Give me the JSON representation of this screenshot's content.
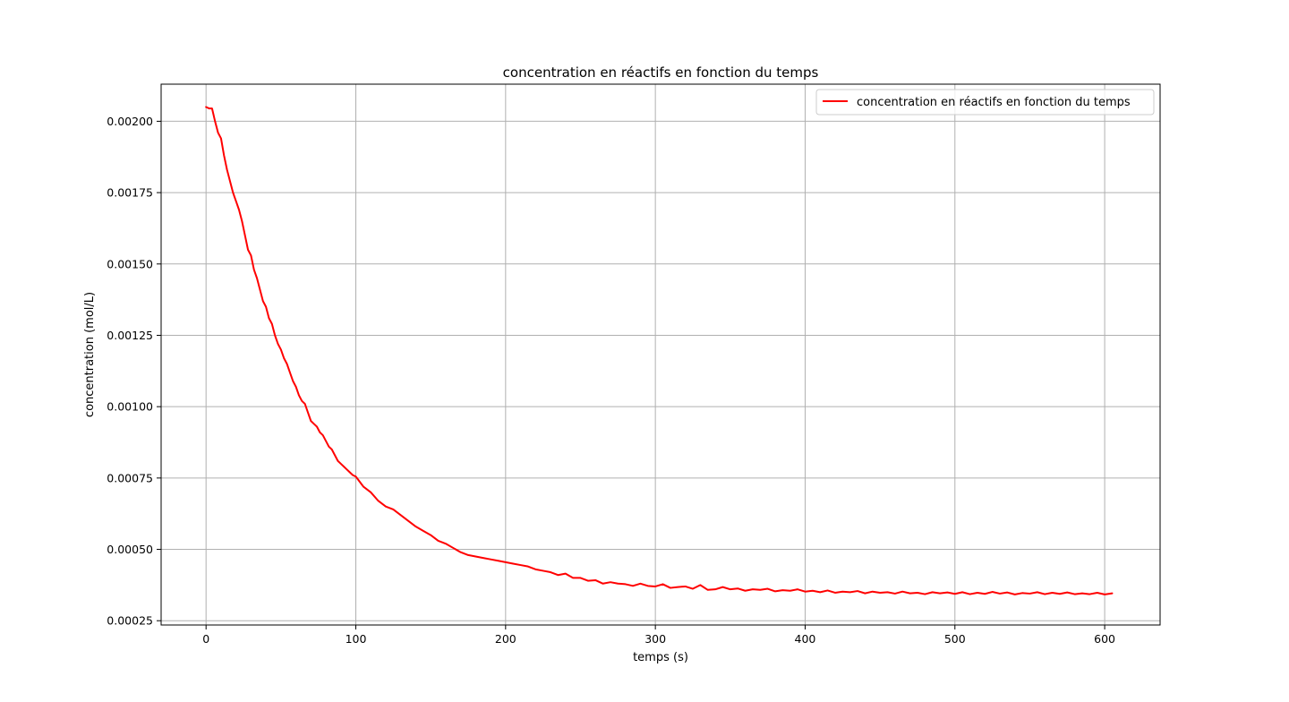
{
  "chart_data": {
    "type": "line",
    "title": "concentration en réactifs en fonction du temps",
    "xlabel": "temps (s)",
    "ylabel": "concentration (mol/L)",
    "xlim": [
      -30,
      637
    ],
    "ylim": [
      0.000235,
      0.00213
    ],
    "grid": true,
    "legend_placement": "upper-right",
    "x_ticks": [
      0,
      100,
      200,
      300,
      400,
      500,
      600
    ],
    "x_tick_labels": [
      "0",
      "100",
      "200",
      "300",
      "400",
      "500",
      "600"
    ],
    "y_ticks": [
      0.00025,
      0.0005,
      0.00075,
      0.001,
      0.00125,
      0.0015,
      0.00175,
      0.002
    ],
    "y_tick_labels": [
      "0.00025",
      "0.00050",
      "0.00075",
      "0.00100",
      "0.00125",
      "0.00150",
      "0.00175",
      "0.00200"
    ],
    "series": [
      {
        "name": "concentration en réactifs en fonction du temps",
        "color": "#ff0000",
        "x": [
          0,
          2,
          4,
          6,
          8,
          10,
          12,
          14,
          16,
          18,
          20,
          22,
          24,
          26,
          28,
          30,
          32,
          34,
          36,
          38,
          40,
          42,
          44,
          46,
          48,
          50,
          52,
          54,
          56,
          58,
          60,
          62,
          64,
          66,
          68,
          70,
          72,
          74,
          76,
          78,
          80,
          82,
          84,
          86,
          88,
          90,
          92,
          94,
          96,
          98,
          100,
          105,
          110,
          115,
          120,
          125,
          130,
          135,
          140,
          145,
          150,
          155,
          160,
          165,
          170,
          175,
          180,
          185,
          190,
          195,
          200,
          205,
          210,
          215,
          220,
          225,
          230,
          235,
          240,
          245,
          250,
          255,
          260,
          265,
          270,
          275,
          280,
          285,
          290,
          295,
          300,
          305,
          310,
          315,
          320,
          325,
          330,
          335,
          340,
          345,
          350,
          355,
          360,
          365,
          370,
          375,
          380,
          385,
          390,
          395,
          400,
          405,
          410,
          415,
          420,
          425,
          430,
          435,
          440,
          445,
          450,
          455,
          460,
          465,
          470,
          475,
          480,
          485,
          490,
          495,
          500,
          505,
          510,
          515,
          520,
          525,
          530,
          535,
          540,
          545,
          550,
          555,
          560,
          565,
          570,
          575,
          580,
          585,
          590,
          595,
          600,
          605
        ],
        "values": [
          0.00205,
          0.002045,
          0.002045,
          0.002,
          0.00196,
          0.00194,
          0.00188,
          0.00183,
          0.00179,
          0.00175,
          0.00172,
          0.00169,
          0.00165,
          0.0016,
          0.00155,
          0.00153,
          0.00148,
          0.00145,
          0.00141,
          0.00137,
          0.00135,
          0.00131,
          0.00129,
          0.00125,
          0.00122,
          0.0012,
          0.00117,
          0.00115,
          0.00112,
          0.00109,
          0.00107,
          0.00104,
          0.00102,
          0.00101,
          0.00098,
          0.00095,
          0.00094,
          0.00093,
          0.00091,
          0.0009,
          0.00088,
          0.00086,
          0.00085,
          0.00083,
          0.00081,
          0.0008,
          0.00079,
          0.00078,
          0.00077,
          0.00076,
          0.000755,
          0.00072,
          0.0007,
          0.00067,
          0.00065,
          0.00064,
          0.00062,
          0.0006,
          0.00058,
          0.000565,
          0.00055,
          0.00053,
          0.00052,
          0.000505,
          0.00049,
          0.00048,
          0.000475,
          0.00047,
          0.000465,
          0.00046,
          0.000455,
          0.00045,
          0.000445,
          0.00044,
          0.00043,
          0.000425,
          0.00042,
          0.00041,
          0.000415,
          0.0004,
          0.0004,
          0.00039,
          0.000392,
          0.00038,
          0.000385,
          0.00038,
          0.000378,
          0.000372,
          0.00038,
          0.000372,
          0.00037,
          0.000378,
          0.000365,
          0.000368,
          0.00037,
          0.000362,
          0.000375,
          0.000358,
          0.00036,
          0.000368,
          0.00036,
          0.000363,
          0.000355,
          0.00036,
          0.000358,
          0.000362,
          0.000353,
          0.000357,
          0.000355,
          0.00036,
          0.000352,
          0.000355,
          0.00035,
          0.000356,
          0.000348,
          0.000352,
          0.00035,
          0.000354,
          0.000346,
          0.000352,
          0.000348,
          0.00035,
          0.000345,
          0.000352,
          0.000346,
          0.000348,
          0.000343,
          0.00035,
          0.000346,
          0.000349,
          0.000344,
          0.00035,
          0.000343,
          0.000348,
          0.000344,
          0.000351,
          0.000345,
          0.000349,
          0.000342,
          0.000347,
          0.000345,
          0.00035,
          0.000343,
          0.000348,
          0.000344,
          0.000349,
          0.000343,
          0.000346,
          0.000343,
          0.000348,
          0.000342,
          0.000346
        ]
      }
    ]
  }
}
